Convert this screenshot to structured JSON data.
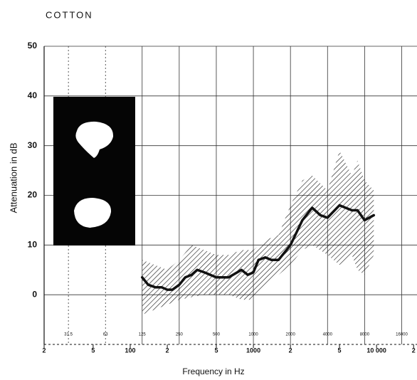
{
  "chart_data": {
    "type": "line",
    "title": "COTTON",
    "xlabel": "Frequency in Hz",
    "ylabel": "Attenuation in dB",
    "log_x": true,
    "grid": true,
    "xlim": [
      20,
      21300
    ],
    "ylim": [
      -10,
      50
    ],
    "xticks": [
      {
        "value": 20,
        "label": "2"
      },
      {
        "value": 50,
        "label": "5"
      },
      100,
      {
        "value": 200,
        "label": "2"
      },
      {
        "value": 500,
        "label": "5"
      },
      1000,
      {
        "value": 2000,
        "label": "2"
      },
      {
        "value": 5000,
        "label": "5"
      },
      {
        "value": 10000,
        "label": "10 000"
      },
      {
        "value": 20000,
        "label": "2"
      }
    ],
    "octave_ticks": [
      31.5,
      63,
      125,
      250,
      500,
      1000,
      2000,
      4000,
      8000,
      16000
    ],
    "yticks": [
      0,
      10,
      20,
      30,
      40,
      50
    ],
    "x": [
      125,
      140,
      160,
      180,
      200,
      220,
      250,
      280,
      315,
      350,
      400,
      500,
      630,
      800,
      900,
      1000,
      1100,
      1250,
      1400,
      1600,
      2000,
      2500,
      3000,
      3500,
      4000,
      5000,
      6300,
      7000,
      8000,
      9500
    ],
    "series": [
      {
        "color": "#111111",
        "values": [
          3.5,
          2,
          1.5,
          1.5,
          1,
          1,
          2,
          3.5,
          4,
          5,
          4.5,
          3.5,
          3.5,
          5,
          4,
          4.5,
          7,
          7.5,
          7,
          7,
          10,
          15,
          17.5,
          16,
          15.5,
          18,
          17,
          17,
          15,
          16
        ]
      }
    ],
    "band": {
      "color": "#111111",
      "x": [
        125,
        200,
        250,
        315,
        400,
        500,
        630,
        800,
        1000,
        1250,
        1600,
        2000,
        2500,
        3000,
        4000,
        5000,
        6300,
        7000,
        8000,
        9500
      ],
      "upper": [
        7,
        5,
        7,
        10,
        9,
        8,
        8,
        9,
        9,
        11,
        12,
        18,
        23,
        24,
        21,
        29,
        24,
        27,
        23,
        21
      ],
      "lower": [
        -4,
        -2,
        -1,
        -0.5,
        0,
        0,
        0,
        -1,
        -1,
        2,
        4,
        6,
        9,
        10,
        8,
        6,
        8,
        5,
        4,
        8
      ]
    }
  }
}
